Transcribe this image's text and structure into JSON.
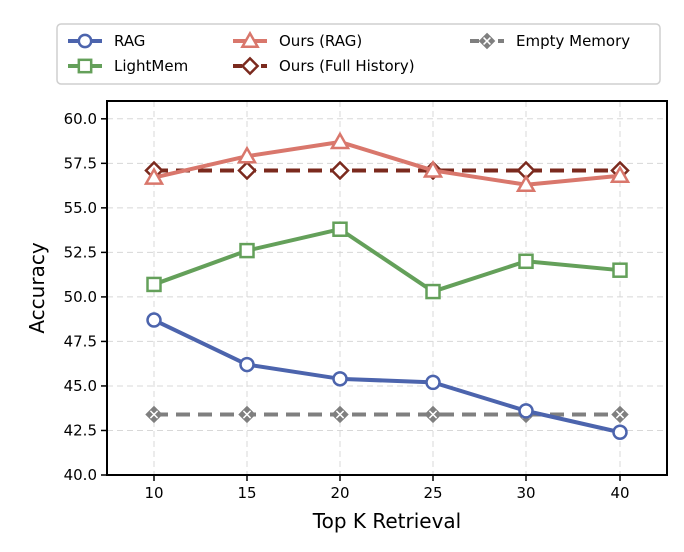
{
  "chart_data": {
    "type": "line",
    "title": "",
    "xlabel": "Top K Retrieval",
    "ylabel": "Accuracy",
    "x": [
      10,
      15,
      20,
      25,
      30,
      40
    ],
    "x_tick_labels": [
      "10",
      "15",
      "20",
      "25",
      "30",
      "40"
    ],
    "y_ticks": [
      40.0,
      42.5,
      45.0,
      47.5,
      50.0,
      52.5,
      55.0,
      57.5,
      60.0
    ],
    "y_tick_labels": [
      "40.0",
      "42.5",
      "45.0",
      "47.5",
      "50.0",
      "52.5",
      "55.0",
      "57.5",
      "60.0"
    ],
    "ylim": [
      40.0,
      61.0
    ],
    "grid": true,
    "legend_position": "top",
    "series": [
      {
        "name": "RAG",
        "color": "#4C64AD",
        "marker": "circle",
        "dashed": false,
        "values": [
          48.7,
          46.2,
          45.4,
          45.2,
          43.6,
          42.4
        ]
      },
      {
        "name": "LightMem",
        "color": "#64A05A",
        "marker": "square",
        "dashed": false,
        "values": [
          50.7,
          52.6,
          53.8,
          50.3,
          52.0,
          51.5
        ]
      },
      {
        "name": "Ours (RAG)",
        "color": "#D9776C",
        "marker": "triangle",
        "dashed": false,
        "values": [
          56.7,
          57.9,
          58.7,
          57.1,
          56.3,
          56.8
        ]
      },
      {
        "name": "Ours (Full History)",
        "color": "#7B2A1E",
        "marker": "diamond",
        "dashed": true,
        "values": [
          57.1,
          57.1,
          57.1,
          57.1,
          57.1,
          57.1
        ]
      },
      {
        "name": "Empty Memory",
        "color": "#7F7F7F",
        "marker": "x-diamond",
        "dashed": true,
        "values": [
          43.4,
          43.4,
          43.4,
          43.4,
          43.4,
          43.4
        ]
      }
    ]
  }
}
